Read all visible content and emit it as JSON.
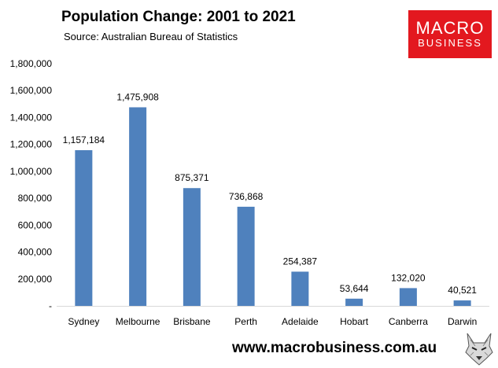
{
  "header": {
    "title": "Population Change: 2001 to 2021",
    "subtitle": "Source: Australian Bureau of Statistics"
  },
  "logo": {
    "line1": "MACRO",
    "line2": "BUSINESS",
    "color": "#e3181f"
  },
  "footer": {
    "url": "www.macrobusiness.com.au",
    "mascot_icon": "wolf-icon"
  },
  "chart_data": {
    "type": "bar",
    "title": "Population Change: 2001 to 2021",
    "subtitle": "Source: Australian Bureau of Statistics",
    "categories": [
      "Sydney",
      "Melbourne",
      "Brisbane",
      "Perth",
      "Adelaide",
      "Hobart",
      "Canberra",
      "Darwin"
    ],
    "values": [
      1157184,
      1475908,
      875371,
      736868,
      254387,
      53644,
      132020,
      40521
    ],
    "data_labels": [
      "1,157,184",
      "1,475,908",
      "875,371",
      "736,868",
      "254,387",
      "53,644",
      "132,020",
      "40,521"
    ],
    "ylim": [
      0,
      1800000
    ],
    "yticks": [
      0,
      200000,
      400000,
      600000,
      800000,
      1000000,
      1200000,
      1400000,
      1600000,
      1800000
    ],
    "ytick_labels": [
      "-",
      "200,000",
      "400,000",
      "600,000",
      "800,000",
      "1,000,000",
      "1,200,000",
      "1,400,000",
      "1,600,000",
      "1,800,000"
    ],
    "bar_color": "#4f81bd",
    "grid": false,
    "legend": "none"
  }
}
